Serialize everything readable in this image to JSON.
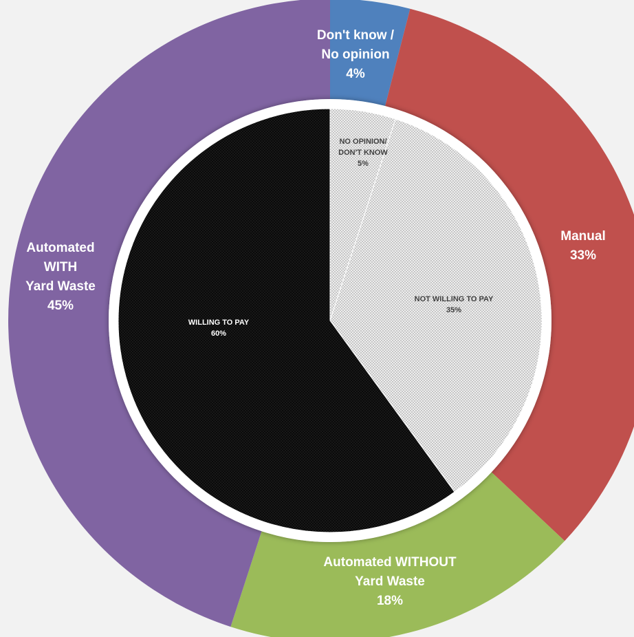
{
  "chart_data": [
    {
      "type": "pie",
      "ring": "outer",
      "slices": [
        {
          "lines": [
            "Don't know /",
            "No opinion",
            "4%"
          ],
          "value": 4,
          "color": "#4f81bd"
        },
        {
          "lines": [
            "Manual",
            "33%"
          ],
          "value": 33,
          "color": "#c0504d"
        },
        {
          "lines": [
            "Automated WITHOUT",
            "Yard Waste",
            "18%"
          ],
          "value": 18,
          "color": "#9bbb59"
        },
        {
          "lines": [
            "Automated",
            "WITH",
            "Yard Waste",
            "45%"
          ],
          "value": 45,
          "color": "#8064a2"
        }
      ]
    },
    {
      "type": "pie",
      "ring": "inner",
      "slices": [
        {
          "lines": [
            "NO OPINION/",
            "DON'T KNOW",
            "5%"
          ],
          "value": 5,
          "color": "#f0f0f0",
          "pattern": "dots-light"
        },
        {
          "lines": [
            "NOT WILLING TO PAY",
            "35%"
          ],
          "value": 35,
          "color": "#e6e6e6",
          "pattern": "dots-light"
        },
        {
          "lines": [
            "WILLING TO PAY",
            "60%"
          ],
          "value": 60,
          "color": "#111111",
          "pattern": "dots-dark"
        }
      ]
    }
  ]
}
